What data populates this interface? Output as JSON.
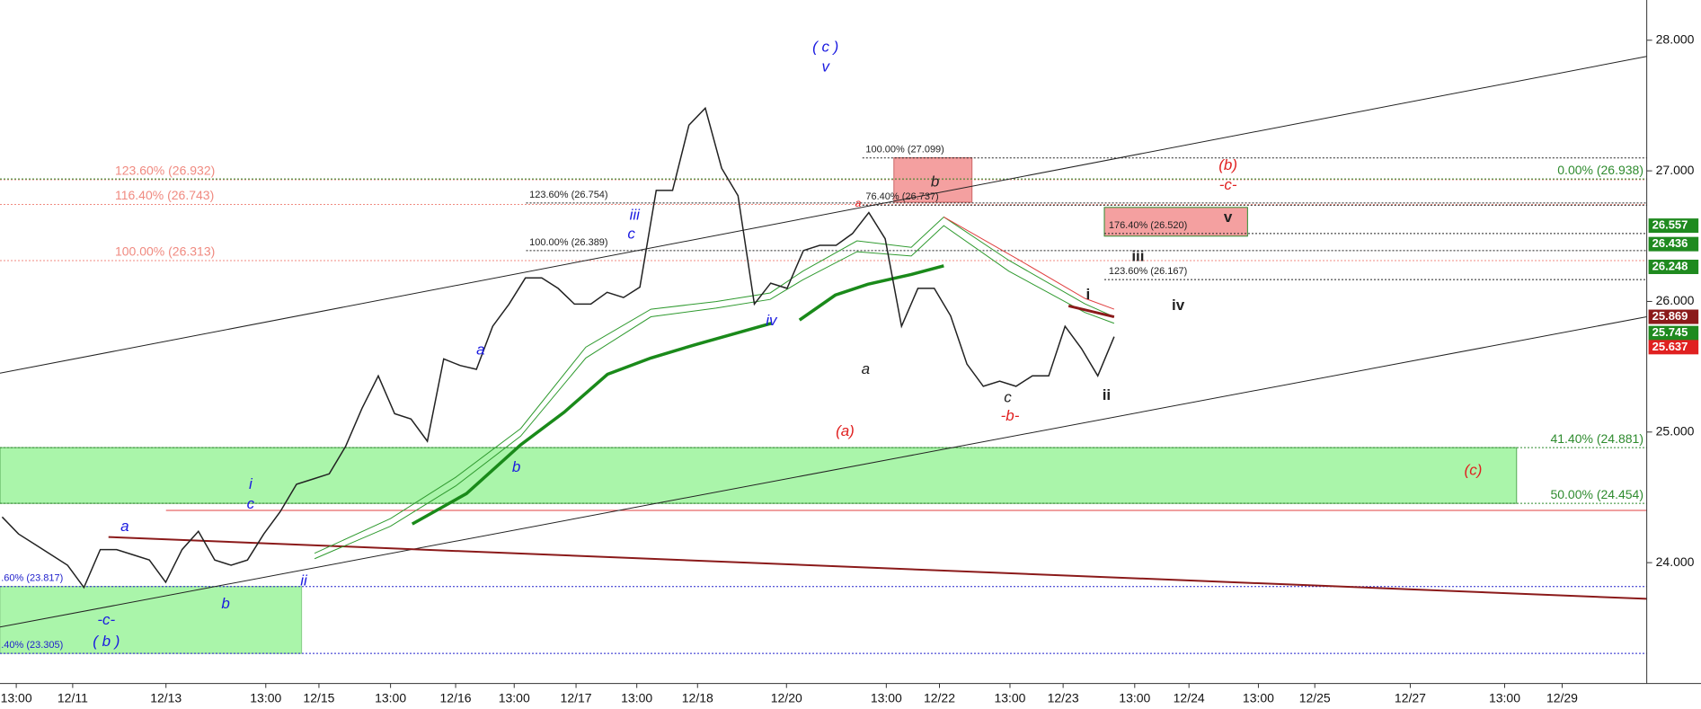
{
  "chart_data": {
    "type": "line",
    "color": "#222222",
    "values": [
      24.35,
      24.22,
      24.14,
      24.06,
      23.98,
      23.81,
      24.1,
      24.1,
      24.06,
      24.02,
      23.85,
      24.1,
      24.24,
      24.02,
      23.98,
      24.02,
      24.22,
      24.39,
      24.6,
      24.64,
      24.68,
      24.89,
      25.18,
      25.43,
      25.14,
      25.1,
      24.93,
      25.56,
      25.51,
      25.48,
      25.81,
      25.98,
      26.18,
      26.18,
      26.1,
      25.98,
      25.98,
      26.07,
      26.03,
      26.11,
      26.85,
      26.85,
      27.35,
      27.48,
      27.02,
      26.81,
      25.98,
      26.14,
      26.1,
      26.39,
      26.43,
      26.43,
      26.52,
      26.68,
      26.48,
      25.81,
      26.1,
      26.1,
      25.89,
      25.52,
      25.35,
      25.39,
      25.35,
      25.43,
      25.43,
      25.81,
      25.64,
      25.43,
      25.73
    ],
    "ylim": [
      23.075,
      28.308
    ],
    "yticks": [
      {
        "value": 24,
        "label": "24.000"
      },
      {
        "value": 25,
        "label": "25.000"
      },
      {
        "value": 26,
        "label": "26.000"
      },
      {
        "value": 27,
        "label": "27.000"
      },
      {
        "value": 28,
        "label": "28.000"
      }
    ],
    "x_tick_labels": [
      "13:00",
      "12/11",
      "12/13",
      "13:00",
      "12/15",
      "13:00",
      "12/16",
      "13:00",
      "12/17",
      "13:00",
      "12/18",
      "12/20",
      "13:00",
      "12/22",
      "13:00",
      "12/23",
      "13:00",
      "12/24",
      "13:00",
      "12/25",
      "12/27",
      "13:00",
      "12/29"
    ],
    "levels": [
      {
        "label": "123.60% (26.932)",
        "value": 26.932,
        "color": "#f08a80"
      },
      {
        "label": "116.40% (26.743)",
        "value": 26.743,
        "color": "#f08a80"
      },
      {
        "label": "100.00% (26.313)",
        "value": 26.313,
        "color": "#f08a80"
      },
      {
        "label": "123.60% (26.754)",
        "value": 26.754,
        "color": "#222222"
      },
      {
        "label": "100.00% (26.389)",
        "value": 26.389,
        "color": "#222222"
      },
      {
        "label": "100.00% (27.099)",
        "value": 27.099,
        "color": "#222222"
      },
      {
        "label": "76.40% (26.737)",
        "value": 26.737,
        "color": "#222222"
      },
      {
        "label": "176.40% (26.520)",
        "value": 26.52,
        "color": "#222222"
      },
      {
        "label": "123.60% (26.167)",
        "value": 26.167,
        "color": "#222222"
      },
      {
        "label": "0.00% (26.938)",
        "value": 26.938,
        "color": "#2e8b2e"
      },
      {
        "label": "41.40% (24.881)",
        "value": 24.881,
        "color": "#2e8b2e"
      },
      {
        "label": "50.00% (24.454)",
        "value": 24.454,
        "color": "#2e8b2e"
      },
      {
        "label": ".60% (23.817)",
        "value": 23.817,
        "color": "#2222cc"
      },
      {
        "label": ".40% (23.305)",
        "value": 23.305,
        "color": "#2222cc"
      }
    ],
    "price_tags": [
      {
        "value": 26.557,
        "label": "26.557",
        "color": "#1f8a1f"
      },
      {
        "value": 26.436,
        "label": "26.436",
        "color": "#1f8a1f"
      },
      {
        "value": 26.248,
        "label": "26.248",
        "color": "#1f8a1f"
      },
      {
        "value": 25.869,
        "label": "25.869",
        "color": "#8b1a1a"
      },
      {
        "value": 25.745,
        "label": "25.745",
        "color": "#1f8a1f"
      },
      {
        "value": 25.637,
        "label": "25.637",
        "color": "#e02020"
      }
    ],
    "annotations": [
      {
        "text": "( c )",
        "color": "#1a1ae0"
      },
      {
        "text": "v",
        "color": "#1a1ae0"
      },
      {
        "text": "iii",
        "color": "#1a1ae0"
      },
      {
        "text": "c",
        "color": "#1a1ae0"
      },
      {
        "text": "iv",
        "color": "#1a1ae0"
      },
      {
        "text": "a",
        "color": "#1a1ae0"
      },
      {
        "text": "b",
        "color": "#1a1ae0"
      },
      {
        "text": "i",
        "color": "#1a1ae0"
      },
      {
        "text": "c",
        "color": "#1a1ae0"
      },
      {
        "text": "a",
        "color": "#1a1ae0"
      },
      {
        "text": "b",
        "color": "#1a1ae0"
      },
      {
        "text": "ii",
        "color": "#1a1ae0"
      },
      {
        "text": "-c-",
        "color": "#1a1ae0"
      },
      {
        "text": "( b )",
        "color": "#1a1ae0"
      },
      {
        "text": "(a)",
        "color": "#e02020"
      },
      {
        "text": "a",
        "color": "#e02020"
      },
      {
        "text": "b",
        "color": "#222222"
      },
      {
        "text": "(b)",
        "color": "#e02020"
      },
      {
        "text": "-c-",
        "color": "#e02020"
      },
      {
        "text": "v",
        "color": "#222222"
      },
      {
        "text": "iii",
        "color": "#222222"
      },
      {
        "text": "i",
        "color": "#222222"
      },
      {
        "text": "iv",
        "color": "#222222"
      },
      {
        "text": "a",
        "color": "#222222"
      },
      {
        "text": "c",
        "color": "#222222"
      },
      {
        "text": "-b-",
        "color": "#e02020"
      },
      {
        "text": "ii",
        "color": "#222222"
      },
      {
        "text": "(c)",
        "color": "#e02020"
      }
    ]
  }
}
